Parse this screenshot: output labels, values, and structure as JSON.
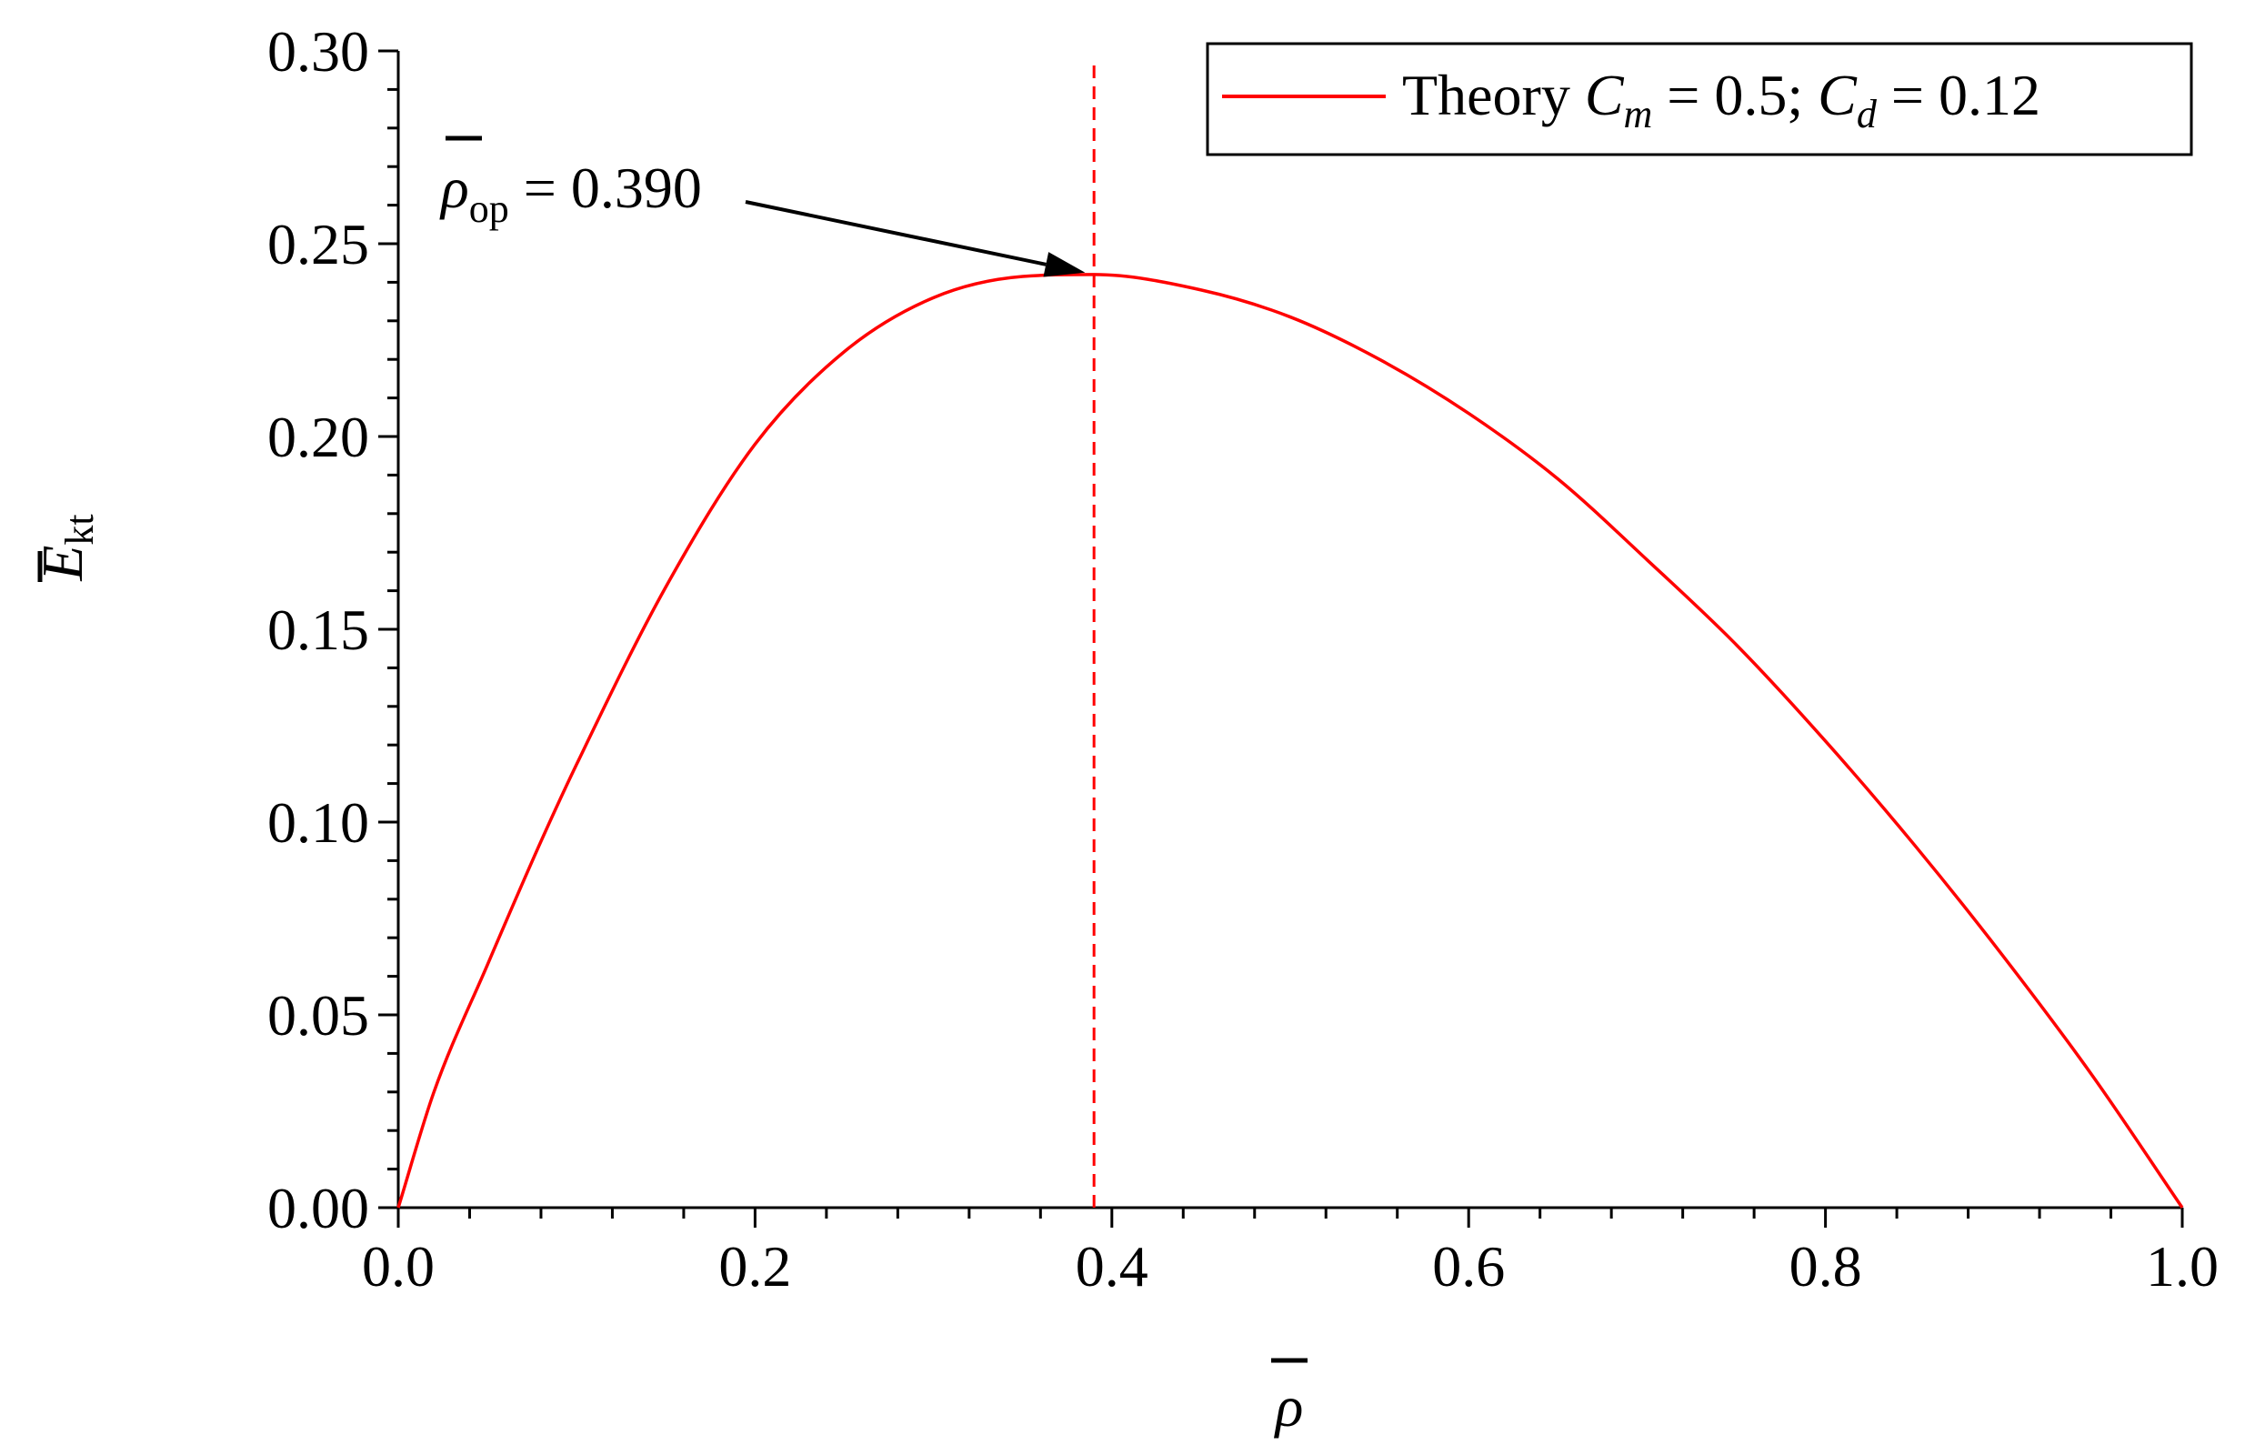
{
  "chart_data": {
    "type": "line",
    "title": "",
    "xlabel": {
      "symbol": "ρ",
      "overbar": true
    },
    "ylabel": {
      "symbol": "E",
      "subscript": "kt",
      "overbar": true
    },
    "xlim": [
      0,
      1
    ],
    "ylim": [
      0,
      0.3
    ],
    "x_major_ticks": [
      "0.0",
      "0.2",
      "0.4",
      "0.6",
      "0.8",
      "1.0"
    ],
    "y_major_ticks": [
      "0.00",
      "0.05",
      "0.10",
      "0.15",
      "0.20",
      "0.25",
      "0.30"
    ],
    "x_major_step": 0.2,
    "x_minor_step": 0.04,
    "y_major_step": 0.05,
    "y_minor_step": 0.01,
    "grid": false,
    "legend_position": "top-right",
    "series": [
      {
        "name": {
          "prefix": "Theory ",
          "c1": "C",
          "c1_sub": "m",
          "mid": " = 0.5; ",
          "c2": "C",
          "c2_sub": "d",
          "suffix": " = 0.12"
        },
        "color": "#ff0000",
        "style": "solid",
        "x": [
          0.0,
          0.02,
          0.05,
          0.08,
          0.1,
          0.15,
          0.2,
          0.25,
          0.3,
          0.35,
          0.39,
          0.45,
          0.5,
          0.55,
          0.6,
          0.65,
          0.7,
          0.75,
          0.8,
          0.85,
          0.9,
          0.95,
          1.0
        ],
        "y": [
          0.0,
          0.03,
          0.063,
          0.095,
          0.115,
          0.161,
          0.198,
          0.222,
          0.236,
          0.2415,
          0.242,
          0.238,
          0.231,
          0.22,
          0.206,
          0.189,
          0.168,
          0.146,
          0.121,
          0.094,
          0.065,
          0.034,
          0.0
        ]
      }
    ],
    "reference_line": {
      "x": 0.39,
      "color": "#ff0000",
      "style": "dashed"
    },
    "annotation": {
      "symbol": "ρ",
      "subscript": "op",
      "value_text": " = 0.390",
      "arrow_target": {
        "x": 0.385,
        "y": 0.2425
      }
    }
  }
}
